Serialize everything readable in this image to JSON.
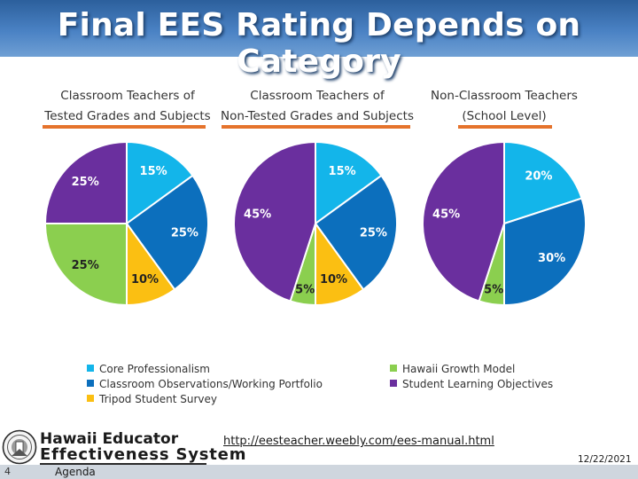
{
  "slide": {
    "title": "Final EES Rating Depends on Category",
    "source_url": "http://eesteacher.weebly.com/ees-manual.html",
    "page_number": "4",
    "agenda_label": "Agenda",
    "date": "12/22/2021"
  },
  "logo": {
    "line1": "Hawaii Educator",
    "line2": "Effectiveness System",
    "seal_icon": "hawaii-state-seal-icon"
  },
  "colors": {
    "title_bar": "#4a82c4",
    "accent_underline": "#e5732c"
  },
  "chart_data": [
    {
      "type": "pie",
      "title_line1": "Classroom Teachers of",
      "title_line2": "Tested Grades and Subjects",
      "slices": [
        {
          "category": "Core Professionalism",
          "value": 15,
          "label": "15%"
        },
        {
          "category": "Classroom Observations/Working Portfolio",
          "value": 25,
          "label": "25%"
        },
        {
          "category": "Tripod Student Survey",
          "value": 10,
          "label": "10%"
        },
        {
          "category": "Hawaii Growth Model",
          "value": 25,
          "label": "25%"
        },
        {
          "category": "Student Learning Objectives",
          "value": 25,
          "label": "25%"
        }
      ]
    },
    {
      "type": "pie",
      "title_line1": "Classroom Teachers of",
      "title_line2": "Non-Tested Grades and Subjects",
      "slices": [
        {
          "category": "Core Professionalism",
          "value": 15,
          "label": "15%"
        },
        {
          "category": "Classroom Observations/Working Portfolio",
          "value": 25,
          "label": "25%"
        },
        {
          "category": "Tripod Student Survey",
          "value": 10,
          "label": "10%"
        },
        {
          "category": "Hawaii Growth Model",
          "value": 5,
          "label": "5%"
        },
        {
          "category": "Student Learning Objectives",
          "value": 45,
          "label": "45%"
        }
      ]
    },
    {
      "type": "pie",
      "title_line1": "Non-Classroom Teachers",
      "title_line2": "(School Level)",
      "slices": [
        {
          "category": "Core Professionalism",
          "value": 20,
          "label": "20%"
        },
        {
          "category": "Classroom Observations/Working Portfolio",
          "value": 30,
          "label": "30%"
        },
        {
          "category": "Hawaii Growth Model",
          "value": 5,
          "label": "5%"
        },
        {
          "category": "Student Learning Objectives",
          "value": 45,
          "label": "45%"
        }
      ]
    }
  ],
  "legend": [
    {
      "label": "Core Professionalism",
      "color": "#13b5ea"
    },
    {
      "label": "Classroom Observations/Working Portfolio",
      "color": "#0c6fbd"
    },
    {
      "label": "Tripod Student Survey",
      "color": "#fbbf12"
    },
    {
      "label": "Hawaii Growth Model",
      "color": "#8bcf4f"
    },
    {
      "label": "Student Learning Objectives",
      "color": "#6a2f9e"
    }
  ]
}
